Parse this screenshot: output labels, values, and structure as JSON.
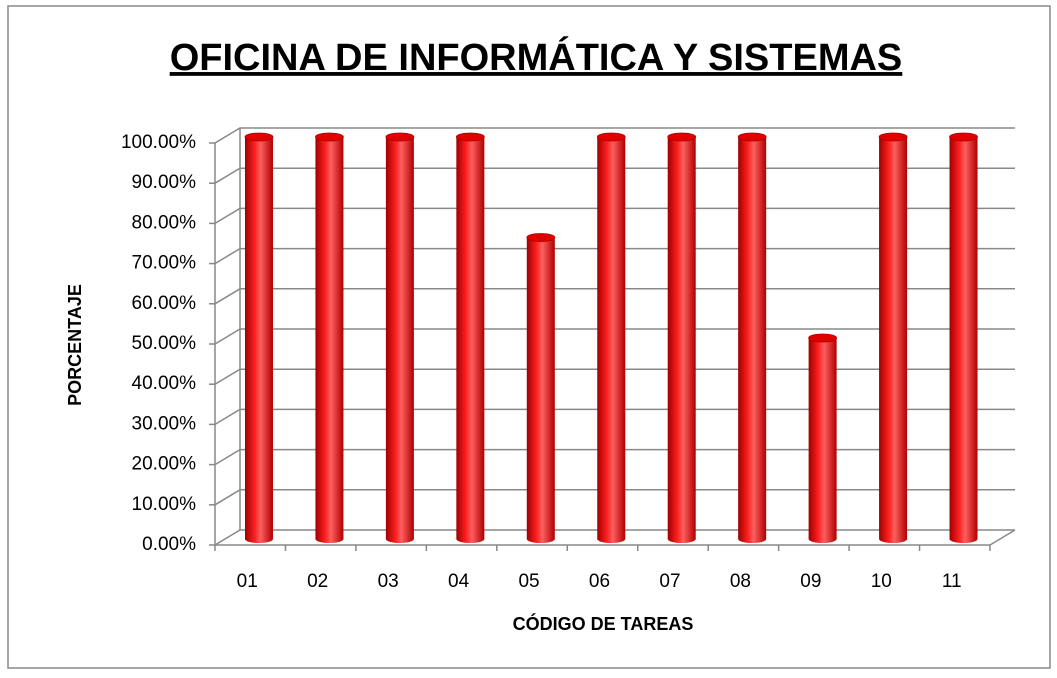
{
  "chart_data": {
    "type": "bar",
    "title": "OFICINA DE INFORMÁTICA Y SISTEMAS",
    "x_label": "CÓDIGO DE TAREAS",
    "y_label": "PORCENTAJE",
    "categories": [
      "01",
      "02",
      "03",
      "04",
      "05",
      "06",
      "07",
      "08",
      "09",
      "10",
      "11"
    ],
    "values": [
      100,
      100,
      100,
      100,
      75,
      100,
      100,
      100,
      50,
      100,
      100
    ],
    "color": "#ff0000",
    "ylim": [
      0,
      100
    ],
    "yticks": [
      {
        "value": 0,
        "label": "0.00%"
      },
      {
        "value": 10,
        "label": "10.00%"
      },
      {
        "value": 20,
        "label": "20.00%"
      },
      {
        "value": 30,
        "label": "30.00%"
      },
      {
        "value": 40,
        "label": "40.00%"
      },
      {
        "value": 50,
        "label": "50.00%"
      },
      {
        "value": 60,
        "label": "60.00%"
      },
      {
        "value": 70,
        "label": "70.00%"
      },
      {
        "value": 80,
        "label": "80.00%"
      },
      {
        "value": 90,
        "label": "90.00%"
      },
      {
        "value": 100,
        "label": "100.00%"
      }
    ],
    "grid": true
  }
}
